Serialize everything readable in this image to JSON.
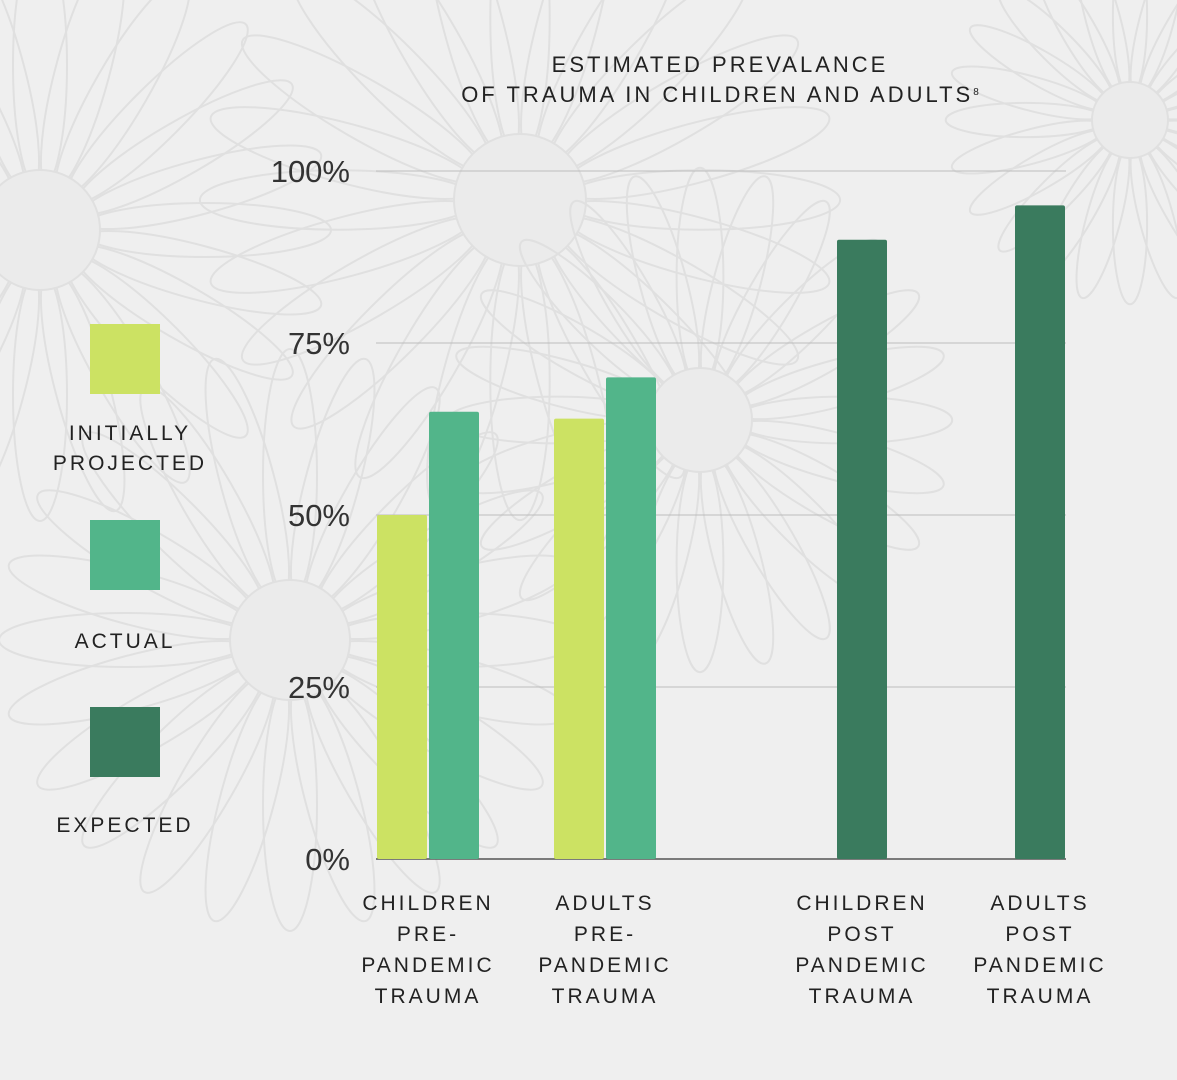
{
  "title": {
    "line1": "ESTIMATED PREVALANCE",
    "line2": "OF TRAUMA IN CHILDREN AND ADULTS",
    "footnote": "8"
  },
  "legend": [
    {
      "label": "INITIALLY PROJECTED",
      "color": "#cce263"
    },
    {
      "label": "ACTUAL",
      "color": "#52b58a"
    },
    {
      "label": "EXPECTED",
      "color": "#3a7b5e"
    }
  ],
  "chart_data": {
    "type": "bar",
    "title": "ESTIMATED PREVALANCE OF TRAUMA IN CHILDREN AND ADULTS",
    "categories": [
      [
        "CHILDREN",
        "PRE-",
        "PANDEMIC",
        "TRAUMA"
      ],
      [
        "ADULTS",
        "PRE-",
        "PANDEMIC",
        "TRAUMA"
      ],
      [
        "CHILDREN",
        "POST",
        "PANDEMIC",
        "TRAUMA"
      ],
      [
        "ADULTS",
        "POST",
        "PANDEMIC",
        "TRAUMA"
      ]
    ],
    "series": [
      {
        "name": "INITIALLY PROJECTED",
        "color": "#cce263",
        "values": [
          50,
          64,
          null,
          null
        ]
      },
      {
        "name": "ACTUAL",
        "color": "#52b58a",
        "values": [
          65,
          70,
          null,
          null
        ]
      },
      {
        "name": "EXPECTED",
        "color": "#3a7b5e",
        "values": [
          null,
          null,
          90,
          95
        ]
      }
    ],
    "yticks": [
      "0%",
      "25%",
      "50%",
      "75%",
      "100%"
    ],
    "ylim": [
      0,
      100
    ],
    "grid": true,
    "legend_position": "left"
  }
}
